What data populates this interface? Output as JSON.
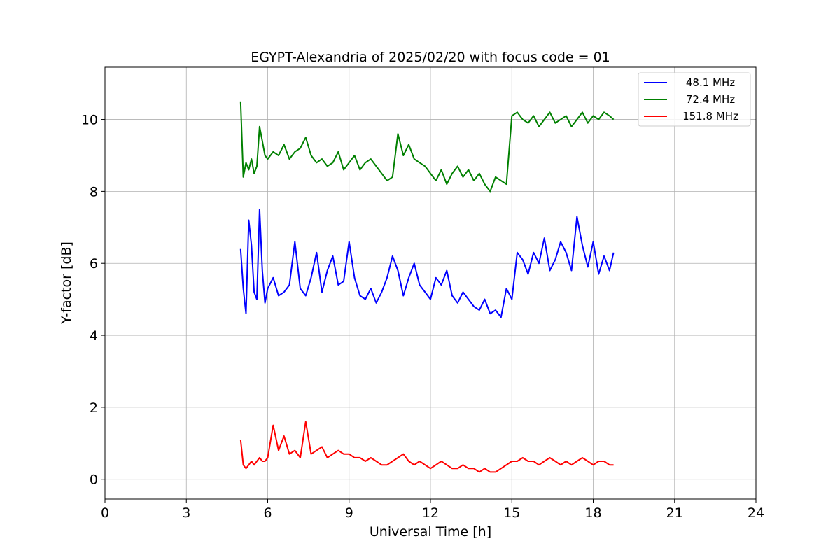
{
  "chart_data": {
    "type": "line",
    "title": "EGYPT-Alexandria of 2025/02/20 with focus code = 01",
    "xlabel": "Universal Time [h]",
    "ylabel": "Y-factor [dB]",
    "xlim": [
      0,
      24
    ],
    "ylim": [
      -0.55,
      11.45
    ],
    "xticks": [
      0,
      3,
      6,
      9,
      12,
      15,
      18,
      21,
      24
    ],
    "xtick_labels": [
      "0",
      "3",
      "6",
      "9",
      "12",
      "15",
      "18",
      "21",
      "24"
    ],
    "yticks": [
      0,
      2,
      4,
      6,
      8,
      10
    ],
    "ytick_labels": [
      "0",
      "2",
      "4",
      "6",
      "8",
      "10"
    ],
    "grid": true,
    "legend_position": "top-right",
    "series": [
      {
        "name": "48.1 MHz",
        "color": "#0000ff",
        "x": [
          5.0,
          5.1,
          5.2,
          5.3,
          5.4,
          5.5,
          5.6,
          5.7,
          5.8,
          5.9,
          6.0,
          6.2,
          6.4,
          6.6,
          6.8,
          7.0,
          7.2,
          7.4,
          7.6,
          7.8,
          8.0,
          8.2,
          8.4,
          8.6,
          8.8,
          9.0,
          9.2,
          9.4,
          9.6,
          9.8,
          10.0,
          10.2,
          10.4,
          10.6,
          10.8,
          11.0,
          11.2,
          11.4,
          11.6,
          11.8,
          12.0,
          12.2,
          12.4,
          12.6,
          12.8,
          13.0,
          13.2,
          13.4,
          13.6,
          13.8,
          14.0,
          14.2,
          14.4,
          14.6,
          14.8,
          15.0,
          15.2,
          15.4,
          15.6,
          15.8,
          16.0,
          16.2,
          16.4,
          16.6,
          16.8,
          17.0,
          17.2,
          17.4,
          17.6,
          17.8,
          18.0,
          18.2,
          18.4,
          18.6,
          18.75
        ],
        "y": [
          6.4,
          5.3,
          4.6,
          7.2,
          6.5,
          5.2,
          5.0,
          7.5,
          5.8,
          4.9,
          5.3,
          5.6,
          5.1,
          5.2,
          5.4,
          6.6,
          5.3,
          5.1,
          5.6,
          6.3,
          5.2,
          5.8,
          6.2,
          5.4,
          5.5,
          6.6,
          5.6,
          5.1,
          5.0,
          5.3,
          4.9,
          5.2,
          5.6,
          6.2,
          5.8,
          5.1,
          5.6,
          6.0,
          5.4,
          5.2,
          5.0,
          5.6,
          5.4,
          5.8,
          5.1,
          4.9,
          5.2,
          5.0,
          4.8,
          4.7,
          5.0,
          4.6,
          4.7,
          4.5,
          5.3,
          5.0,
          6.3,
          6.1,
          5.7,
          6.3,
          6.0,
          6.7,
          5.8,
          6.1,
          6.6,
          6.3,
          5.8,
          7.3,
          6.5,
          5.9,
          6.6,
          5.7,
          6.2,
          5.8,
          6.3
        ]
      },
      {
        "name": "72.4 MHz",
        "color": "#008000",
        "x": [
          5.0,
          5.1,
          5.2,
          5.3,
          5.4,
          5.5,
          5.6,
          5.7,
          5.8,
          5.9,
          6.0,
          6.2,
          6.4,
          6.6,
          6.8,
          7.0,
          7.2,
          7.4,
          7.6,
          7.8,
          8.0,
          8.2,
          8.4,
          8.6,
          8.8,
          9.0,
          9.2,
          9.4,
          9.6,
          9.8,
          10.0,
          10.2,
          10.4,
          10.6,
          10.8,
          11.0,
          11.2,
          11.4,
          11.6,
          11.8,
          12.0,
          12.2,
          12.4,
          12.6,
          12.8,
          13.0,
          13.2,
          13.4,
          13.6,
          13.8,
          14.0,
          14.2,
          14.4,
          14.6,
          14.8,
          15.0,
          15.2,
          15.4,
          15.6,
          15.8,
          16.0,
          16.2,
          16.4,
          16.6,
          16.8,
          17.0,
          17.2,
          17.4,
          17.6,
          17.8,
          18.0,
          18.2,
          18.4,
          18.6,
          18.75
        ],
        "y": [
          10.5,
          8.4,
          8.8,
          8.6,
          8.9,
          8.5,
          8.7,
          9.8,
          9.4,
          9.0,
          8.9,
          9.1,
          9.0,
          9.3,
          8.9,
          9.1,
          9.2,
          9.5,
          9.0,
          8.8,
          8.9,
          8.7,
          8.8,
          9.1,
          8.6,
          8.8,
          9.0,
          8.6,
          8.8,
          8.9,
          8.7,
          8.5,
          8.3,
          8.4,
          9.6,
          9.0,
          9.3,
          8.9,
          8.8,
          8.7,
          8.5,
          8.3,
          8.6,
          8.2,
          8.5,
          8.7,
          8.4,
          8.6,
          8.3,
          8.5,
          8.2,
          8.0,
          8.4,
          8.3,
          8.2,
          10.1,
          10.2,
          10.0,
          9.9,
          10.1,
          9.8,
          10.0,
          10.2,
          9.9,
          10.0,
          10.1,
          9.8,
          10.0,
          10.2,
          9.9,
          10.1,
          10.0,
          10.2,
          10.1,
          10.0
        ]
      },
      {
        "name": "151.8 MHz",
        "color": "#ff0000",
        "x": [
          5.0,
          5.1,
          5.2,
          5.3,
          5.4,
          5.5,
          5.6,
          5.7,
          5.8,
          5.9,
          6.0,
          6.2,
          6.4,
          6.6,
          6.8,
          7.0,
          7.2,
          7.4,
          7.6,
          7.8,
          8.0,
          8.2,
          8.4,
          8.6,
          8.8,
          9.0,
          9.2,
          9.4,
          9.6,
          9.8,
          10.0,
          10.2,
          10.4,
          10.6,
          10.8,
          11.0,
          11.2,
          11.4,
          11.6,
          11.8,
          12.0,
          12.2,
          12.4,
          12.6,
          12.8,
          13.0,
          13.2,
          13.4,
          13.6,
          13.8,
          14.0,
          14.2,
          14.4,
          14.6,
          14.8,
          15.0,
          15.2,
          15.4,
          15.6,
          15.8,
          16.0,
          16.2,
          16.4,
          16.6,
          16.8,
          17.0,
          17.2,
          17.4,
          17.6,
          17.8,
          18.0,
          18.2,
          18.4,
          18.6,
          18.75
        ],
        "y": [
          1.1,
          0.4,
          0.3,
          0.4,
          0.5,
          0.4,
          0.5,
          0.6,
          0.5,
          0.5,
          0.6,
          1.5,
          0.8,
          1.2,
          0.7,
          0.8,
          0.6,
          1.6,
          0.7,
          0.8,
          0.9,
          0.6,
          0.7,
          0.8,
          0.7,
          0.7,
          0.6,
          0.6,
          0.5,
          0.6,
          0.5,
          0.4,
          0.4,
          0.5,
          0.6,
          0.7,
          0.5,
          0.4,
          0.5,
          0.4,
          0.3,
          0.4,
          0.5,
          0.4,
          0.3,
          0.3,
          0.4,
          0.3,
          0.3,
          0.2,
          0.3,
          0.2,
          0.2,
          0.3,
          0.4,
          0.5,
          0.5,
          0.6,
          0.5,
          0.5,
          0.4,
          0.5,
          0.6,
          0.5,
          0.4,
          0.5,
          0.4,
          0.5,
          0.6,
          0.5,
          0.4,
          0.5,
          0.5,
          0.4,
          0.4
        ]
      }
    ]
  }
}
